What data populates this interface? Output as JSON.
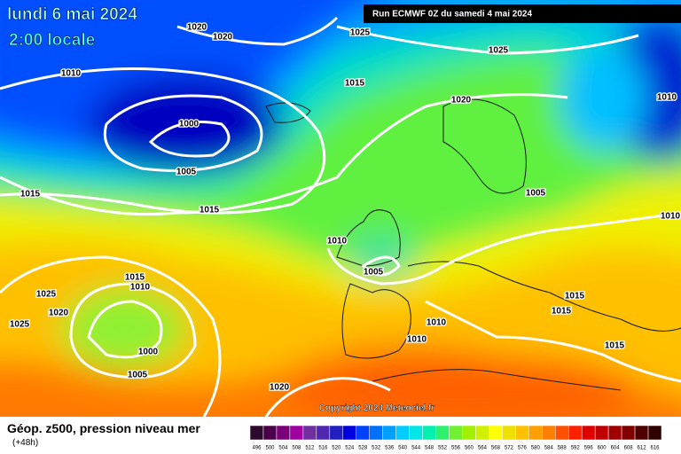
{
  "header": {
    "title": "lundi 6 mai 2024",
    "time": "2:00 locale",
    "run": "Run ECMWF 0Z du samedi 4 mai 2024"
  },
  "isobar_labels": [
    1020,
    1020,
    1025,
    1025,
    1010,
    1015,
    1020,
    1010,
    1000,
    1005,
    1015,
    1015,
    1005,
    1010,
    1010,
    1005,
    1015,
    1010,
    1025,
    1020,
    1025,
    1015,
    1015,
    1010,
    1010,
    1000,
    1015,
    1005,
    1020
  ],
  "copyright": "Copyright 2024 Meteociel.fr",
  "footer": {
    "title": "Géop. z500, pression niveau mer",
    "lead": "(+48h)"
  },
  "scale": {
    "values": [
      496,
      500,
      504,
      508,
      512,
      516,
      520,
      524,
      528,
      532,
      536,
      540,
      544,
      548,
      552,
      556,
      560,
      564,
      568,
      572,
      576,
      580,
      584,
      588,
      592,
      596,
      600,
      604,
      608,
      612,
      616
    ],
    "colors": [
      "#2d0a2d",
      "#4b004b",
      "#7a007a",
      "#a000a0",
      "#7030a0",
      "#5028b0",
      "#2020c0",
      "#0000e0",
      "#0040ff",
      "#0070ff",
      "#00a0ff",
      "#00ccff",
      "#00e6e6",
      "#00f0b0",
      "#30f070",
      "#70f030",
      "#a0f000",
      "#d0f000",
      "#ffff00",
      "#f0e000",
      "#ffc000",
      "#ffa000",
      "#ff8000",
      "#ff5000",
      "#ff2000",
      "#e00000",
      "#c00000",
      "#a00000",
      "#800000",
      "#500000",
      "#300000"
    ]
  }
}
